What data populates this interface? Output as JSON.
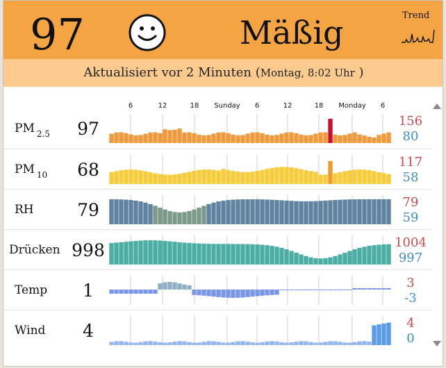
{
  "header": {
    "aqi_value": "97",
    "level_text": "Mäßig",
    "trend_label": "Trend",
    "icons": {
      "face": "smiley-face-icon",
      "trend": "trend-sparkline-icon"
    },
    "colors": {
      "header_bg": "#f5a444",
      "updated_bg": "#fccb8d"
    }
  },
  "updated": {
    "text": "Aktualisiert vor 2 Minuten",
    "paren_open": "(",
    "time": "Montag, 8:02 Uhr",
    "paren_close": ")"
  },
  "axis": {
    "labels": [
      "6",
      "12",
      "18",
      "Sunday",
      "6",
      "12",
      "18",
      "Monday",
      "6"
    ]
  },
  "rows": [
    {
      "label": "PM",
      "sub": "2.5",
      "value": "97",
      "max": "156",
      "min": "80"
    },
    {
      "label": "PM",
      "sub": "10",
      "value": "68",
      "max": "117",
      "min": "58"
    },
    {
      "label": "RH",
      "sub": "",
      "value": "79",
      "max": "79",
      "min": "59"
    },
    {
      "label": "Drücken",
      "sub": "",
      "value": "998",
      "max": "1004",
      "min": "997"
    },
    {
      "label": "Temp",
      "sub": "",
      "value": "1",
      "max": "3",
      "min": "-3"
    },
    {
      "label": "Wind",
      "sub": "",
      "value": "4",
      "max": "4",
      "min": "0"
    }
  ],
  "colors": {
    "pm25": "#ef9a3c",
    "pm25_peak": "#c8102e",
    "pm10": "#f7cb3a",
    "pm10_peak": "#f29a2e",
    "rh": "#5f83a0",
    "rh_low": "#7b9a8a",
    "pressure": "#4aaea5",
    "temp": "#7b96e6",
    "temp_warm": "#8fb0c4",
    "wind": "#93b4ee",
    "wind_high": "#5a9be6",
    "max_text": "#c94a4a",
    "min_text": "#3c8ec8"
  }
}
